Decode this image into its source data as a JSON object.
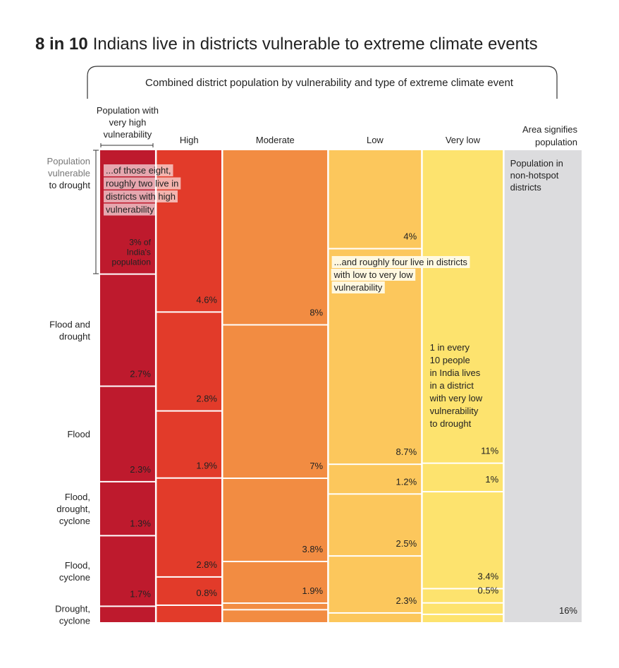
{
  "chart_data": {
    "type": "mosaic",
    "title_bold": "8 in 10",
    "title": "Indians live in districts vulnerable to extreme climate events",
    "subtitle": "Combined district population by vulnerability and type of extreme climate event",
    "area_note": [
      "Area signifies",
      "population"
    ],
    "row_labels": [
      [
        "Population",
        "vulnerable",
        "to drought"
      ],
      [
        "Flood and",
        "drought"
      ],
      [
        "Flood"
      ],
      [
        "Flood,",
        "drought,",
        "cyclone"
      ],
      [
        "Flood,",
        "cyclone"
      ],
      [
        "Drought,",
        "cyclone"
      ]
    ],
    "series": [
      {
        "name": [
          "Population with",
          "very high",
          "vulnerability"
        ],
        "color": "#be1a2d",
        "text_color": "#ffffff",
        "values": [
          3,
          2.7,
          2.3,
          1.3,
          1.7,
          0.4
        ],
        "value_labels": [
          [
            "3% of",
            "India's",
            "population"
          ],
          [
            "2.7%"
          ],
          [
            "2.3%"
          ],
          [
            "1.3%"
          ],
          [
            "1.7%"
          ],
          null
        ]
      },
      {
        "name": [
          "High"
        ],
        "color": "#e23b2a",
        "text_color": "#ffffff",
        "values": [
          4.6,
          2.8,
          1.9,
          2.8,
          0.8,
          0.5
        ],
        "value_labels": [
          [
            "4.6%"
          ],
          [
            "2.8%"
          ],
          [
            "1.9%"
          ],
          [
            "2.8%"
          ],
          [
            "0.8%"
          ],
          null
        ]
      },
      {
        "name": [
          "Moderate"
        ],
        "color": "#f28c42",
        "text_color": "#ffffff",
        "values": [
          8,
          7,
          3.8,
          1.9,
          0.3,
          0.6
        ],
        "value_labels": [
          [
            "8%"
          ],
          [
            "7%"
          ],
          [
            "3.8%"
          ],
          [
            "1.9%"
          ],
          null,
          null
        ]
      },
      {
        "name": [
          "Low"
        ],
        "color": "#fcc75c",
        "text_color": "#222222",
        "values": [
          4,
          8.7,
          1.2,
          2.5,
          2.3,
          0.4
        ],
        "value_labels": [
          [
            "4%"
          ],
          [
            "8.7%"
          ],
          [
            "1.2%"
          ],
          [
            "2.5%"
          ],
          [
            "2.3%"
          ],
          null
        ]
      },
      {
        "name": [
          "Very low"
        ],
        "color": "#fde36e",
        "text_color": "#222222",
        "values": [
          11,
          1,
          3.4,
          0.5,
          0.4,
          0.3
        ],
        "value_labels": [
          [
            "11%"
          ],
          [
            "1%"
          ],
          [
            "3.4%"
          ],
          [
            "0.5%"
          ],
          null,
          null
        ]
      },
      {
        "name": [
          "Population in",
          "non-hotspot",
          "districts"
        ],
        "color": "#dcdcde",
        "text_color": "#222222",
        "values": [
          16
        ],
        "value_labels": [
          [
            "16%"
          ]
        ]
      }
    ],
    "annotations": [
      {
        "lines": [
          "...of those eight,",
          "roughly two live in",
          "districts with high",
          "vulnerability"
        ],
        "highlight": "rgba(255,255,255,0.62)"
      },
      {
        "lines": [
          "...and roughly four live in districts",
          "with low to very low",
          "vulnerability"
        ],
        "highlight": "rgba(255,252,235,0.92)"
      },
      {
        "lines": [
          "1 in every",
          "10 people",
          "in India lives",
          "in a district",
          "with very low",
          "vulnerability",
          "to drought"
        ],
        "highlight": null
      }
    ]
  }
}
